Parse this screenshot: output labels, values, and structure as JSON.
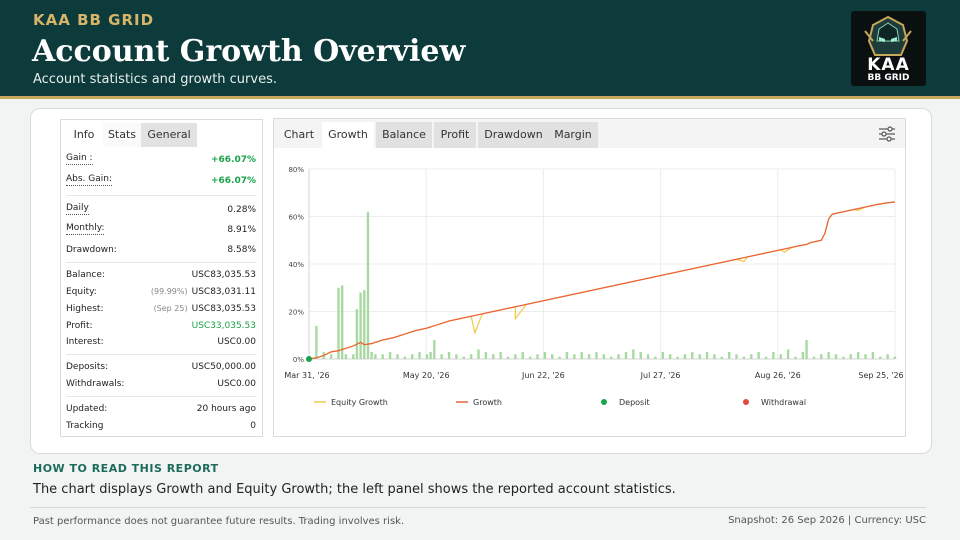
{
  "header": {
    "brand": "KAA BB GRID",
    "title": "Account Growth Overview",
    "subtitle": "Account statistics and growth curves.",
    "logo_line1": "KAA",
    "logo_line2": "BB GRID"
  },
  "stats_panel": {
    "tabs": [
      "Info",
      "Stats",
      "General"
    ],
    "gain_label": "Gain :",
    "gain_value": "+66.07%",
    "abs_gain_label": "Abs. Gain:",
    "abs_gain_value": "+66.07%",
    "daily_label": "Daily",
    "daily_value": "0.28%",
    "monthly_label": "Monthly:",
    "monthly_value": "8.91%",
    "drawdown_label": "Drawdown:",
    "drawdown_value": "8.58%",
    "balance_label": "Balance:",
    "balance_value": "USC83,035.53",
    "equity_label": "Equity:",
    "equity_note": "(99.99%)",
    "equity_value": "USC83,031.11",
    "highest_label": "Highest:",
    "highest_note": "(Sep 25)",
    "highest_value": "USC83,035.53",
    "profit_label": "Profit:",
    "profit_value": "USC33,035.53",
    "interest_label": "Interest:",
    "interest_value": "USC0.00",
    "deposits_label": "Deposits:",
    "deposits_value": "USC50,000.00",
    "withdrawals_label": "Withdrawals:",
    "withdrawals_value": "USC0.00",
    "updated_label": "Updated:",
    "updated_value": "20 hours ago",
    "tracking_label": "Tracking",
    "tracking_value": "0"
  },
  "chart_panel": {
    "tabs": [
      "Chart",
      "Growth",
      "Balance",
      "Profit",
      "Drawdown",
      "Margin"
    ],
    "active_tab": "Growth",
    "settings_icon": "sliders-icon"
  },
  "chart_data": {
    "type": "line",
    "x_ticks": [
      "Mar 31, '26",
      "May 20, '26",
      "Jun 22, '26",
      "Jul 27, '26",
      "Aug 26, '26",
      "Sep 25, '26"
    ],
    "y_ticks": [
      "0%",
      "20%",
      "40%",
      "60%",
      "80%"
    ],
    "ylim": [
      0,
      80
    ],
    "legend": [
      "Equity Growth",
      "Growth",
      "Deposit",
      "Withdrawal"
    ],
    "legend_position": "bottom",
    "grid": true,
    "colors": {
      "growth": "#e8663a",
      "equity": "#f2c84b",
      "bars": "#a9d9a2",
      "deposit": "#1aa34a",
      "withdrawal": "#e04a3a"
    },
    "growth_series": [
      [
        0,
        0
      ],
      [
        4,
        0.5
      ],
      [
        8,
        1.5
      ],
      [
        12,
        3
      ],
      [
        16,
        3.5
      ],
      [
        20,
        4.5
      ],
      [
        24,
        5.5
      ],
      [
        28,
        7
      ],
      [
        30,
        6
      ],
      [
        34,
        6.5
      ],
      [
        40,
        8
      ],
      [
        46,
        9
      ],
      [
        52,
        10.5
      ],
      [
        58,
        12
      ],
      [
        64,
        13
      ],
      [
        70,
        14.5
      ],
      [
        76,
        16
      ],
      [
        82,
        17
      ],
      [
        88,
        18
      ],
      [
        94,
        19
      ],
      [
        100,
        20
      ],
      [
        106,
        21
      ],
      [
        112,
        22
      ],
      [
        118,
        23
      ],
      [
        124,
        24
      ],
      [
        130,
        25
      ],
      [
        136,
        26
      ],
      [
        142,
        27
      ],
      [
        148,
        28
      ],
      [
        154,
        29
      ],
      [
        160,
        30
      ],
      [
        166,
        31
      ],
      [
        172,
        32
      ],
      [
        178,
        33
      ],
      [
        184,
        34
      ],
      [
        190,
        35
      ],
      [
        196,
        36
      ],
      [
        202,
        37
      ],
      [
        208,
        38
      ],
      [
        214,
        39
      ],
      [
        220,
        40
      ],
      [
        226,
        41
      ],
      [
        232,
        42
      ],
      [
        238,
        43
      ],
      [
        244,
        44
      ],
      [
        250,
        45
      ],
      [
        256,
        46
      ],
      [
        262,
        47
      ],
      [
        268,
        48
      ],
      [
        270,
        48.2
      ],
      [
        272,
        49
      ],
      [
        278,
        50
      ],
      [
        280,
        53
      ],
      [
        282,
        59
      ],
      [
        284,
        61
      ],
      [
        290,
        62
      ],
      [
        296,
        63
      ],
      [
        302,
        64
      ],
      [
        308,
        65
      ],
      [
        314,
        65.8
      ],
      [
        318,
        66.07
      ]
    ],
    "equity_dips": [
      [
        90,
        11
      ],
      [
        112,
        17
      ],
      [
        236,
        41
      ],
      [
        258,
        45
      ],
      [
        298,
        62.5
      ]
    ],
    "daily_bars": [
      [
        4,
        14
      ],
      [
        8,
        3
      ],
      [
        12,
        2
      ],
      [
        16,
        30
      ],
      [
        18,
        31
      ],
      [
        20,
        2
      ],
      [
        24,
        2
      ],
      [
        26,
        21
      ],
      [
        28,
        28
      ],
      [
        30,
        29
      ],
      [
        32,
        62
      ],
      [
        34,
        3
      ],
      [
        36,
        2
      ],
      [
        40,
        2
      ],
      [
        44,
        3
      ],
      [
        48,
        2
      ],
      [
        52,
        1
      ],
      [
        56,
        2
      ],
      [
        60,
        3
      ],
      [
        64,
        2
      ],
      [
        66,
        3
      ],
      [
        68,
        8
      ],
      [
        72,
        2
      ],
      [
        76,
        3
      ],
      [
        80,
        2
      ],
      [
        84,
        1
      ],
      [
        88,
        2
      ],
      [
        92,
        4
      ],
      [
        96,
        3
      ],
      [
        100,
        2
      ],
      [
        104,
        3
      ],
      [
        108,
        1
      ],
      [
        112,
        2
      ],
      [
        116,
        3
      ],
      [
        120,
        1
      ],
      [
        124,
        2
      ],
      [
        128,
        3
      ],
      [
        132,
        2
      ],
      [
        136,
        1
      ],
      [
        140,
        3
      ],
      [
        144,
        2
      ],
      [
        148,
        3
      ],
      [
        152,
        2
      ],
      [
        156,
        3
      ],
      [
        160,
        2
      ],
      [
        164,
        1
      ],
      [
        168,
        2
      ],
      [
        172,
        3
      ],
      [
        176,
        4
      ],
      [
        180,
        3
      ],
      [
        184,
        2
      ],
      [
        188,
        1
      ],
      [
        192,
        3
      ],
      [
        196,
        2
      ],
      [
        200,
        1
      ],
      [
        204,
        2
      ],
      [
        208,
        3
      ],
      [
        212,
        2
      ],
      [
        216,
        3
      ],
      [
        220,
        2
      ],
      [
        224,
        1
      ],
      [
        228,
        3
      ],
      [
        232,
        2
      ],
      [
        236,
        1
      ],
      [
        240,
        2
      ],
      [
        244,
        3
      ],
      [
        248,
        1
      ],
      [
        252,
        3
      ],
      [
        256,
        2
      ],
      [
        260,
        4
      ],
      [
        264,
        1
      ],
      [
        268,
        3
      ],
      [
        270,
        8
      ],
      [
        274,
        1
      ],
      [
        278,
        2
      ],
      [
        282,
        3
      ],
      [
        286,
        2
      ],
      [
        290,
        1
      ],
      [
        294,
        2
      ],
      [
        298,
        3
      ],
      [
        302,
        2
      ],
      [
        306,
        3
      ],
      [
        310,
        1
      ],
      [
        314,
        2
      ],
      [
        318,
        1
      ]
    ],
    "x_max": 318
  },
  "howto": {
    "heading": "HOW TO READ THIS REPORT",
    "text": "The chart displays Growth and Equity Growth; the left panel shows the reported account statistics."
  },
  "footer": {
    "disclaimer": "Past performance does not guarantee future results. Trading involves risk.",
    "snapshot": "Snapshot: 26 Sep 2026 | Currency: USC"
  }
}
